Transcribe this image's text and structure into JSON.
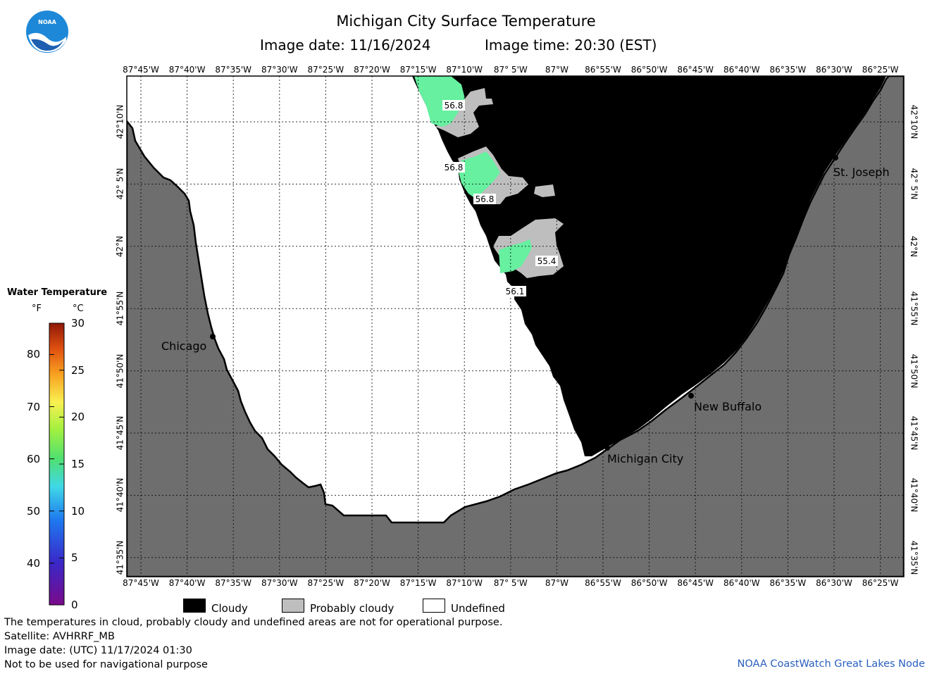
{
  "title": "Michigan City Surface Temperature",
  "image_date_label": "Image date: 11/16/2024",
  "image_time_label": "Image time: 20:30 (EST)",
  "logo_text": "NOAA",
  "longitude_labels": [
    "87°45'W",
    "87°40'W",
    "87°35'W",
    "87°30'W",
    "87°25'W",
    "87°20'W",
    "87°15'W",
    "87°10'W",
    "87° 5'W",
    "87°W",
    "86°55'W",
    "86°50'W",
    "86°45'W",
    "86°40'W",
    "86°35'W",
    "86°30'W",
    "86°25'W"
  ],
  "latitude_labels": [
    "42°10'N",
    "42° 5'N",
    "42°N",
    "41°55'N",
    "41°50'N",
    "41°45'N",
    "41°40'N",
    "41°35'N"
  ],
  "cities": [
    {
      "name": "Chicago"
    },
    {
      "name": "St. Joseph"
    },
    {
      "name": "New Buffalo"
    },
    {
      "name": "Michigan City"
    }
  ],
  "temperature_labels": [
    "56.8",
    "56.8",
    "56.8",
    "55.4",
    "56.1"
  ],
  "legend": {
    "title": "Water Temperature",
    "unit_f": "°F",
    "unit_c": "°C",
    "f_ticks": [
      "40",
      "50",
      "60",
      "70",
      "80"
    ],
    "c_ticks": [
      "0",
      "5",
      "10",
      "15",
      "20",
      "25",
      "30"
    ]
  },
  "key": {
    "cloudy": "Cloudy",
    "probably_cloudy": "Probably cloudy",
    "undefined": "Undefined"
  },
  "colors": {
    "land": "#6e6e6e",
    "cloud": "#000000",
    "probably_cloudy": "#bebebe",
    "water_warm": "#66f0a0",
    "credit": "#2a5fbf"
  },
  "footer": {
    "disclaimer": "The temperatures in cloud, probably cloudy and undefined areas are not for operational purpose.",
    "satellite": "Satellite: AVHRRF_MB",
    "utc_date": "Image date: (UTC) 11/17/2024  01:30",
    "navigation": "Not to be used for navigational purpose",
    "credit": "NOAA CoastWatch Great Lakes Node"
  }
}
